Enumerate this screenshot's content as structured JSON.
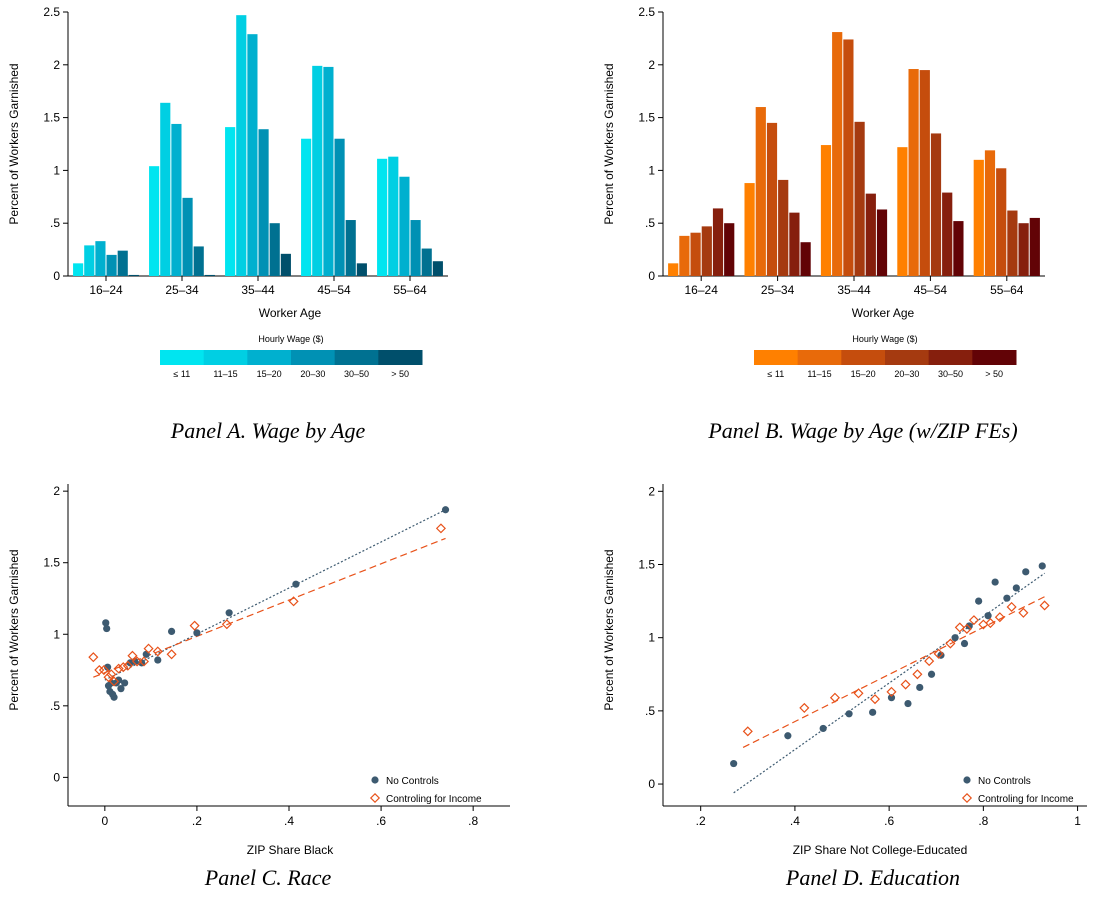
{
  "chart_data": [
    {
      "type": "bar",
      "caption": "Panel A. Wage by Age",
      "xlabel": "Worker Age",
      "ylabel": "Percent of Workers Garnished",
      "ylim": [
        0,
        2.5
      ],
      "yticks": [
        0,
        0.5,
        1,
        1.5,
        2,
        2.5
      ],
      "ytick_labels": [
        "0",
        ".5",
        "1",
        "1.5",
        "2",
        "2.5"
      ],
      "categories": [
        "16–24",
        "25–34",
        "35–44",
        "45–54",
        "55–64"
      ],
      "legend_title": "Hourly Wage ($)",
      "legend_placement": "bottom",
      "series": [
        {
          "name": "≤ 11",
          "color": "#00e5f0",
          "values": [
            0.12,
            1.04,
            1.41,
            1.3,
            1.11
          ]
        },
        {
          "name": "11–15",
          "color": "#00cfe3",
          "values": [
            0.29,
            1.64,
            2.47,
            1.99,
            1.13
          ]
        },
        {
          "name": "15–20",
          "color": "#00b0cf",
          "values": [
            0.33,
            1.44,
            2.29,
            1.98,
            0.94
          ]
        },
        {
          "name": "20–30",
          "color": "#0091b4",
          "values": [
            0.2,
            0.74,
            1.39,
            1.3,
            0.53
          ]
        },
        {
          "name": "30–50",
          "color": "#007191",
          "values": [
            0.24,
            0.28,
            0.5,
            0.53,
            0.26
          ]
        },
        {
          "name": "> 50",
          "color": "#004f6b",
          "values": [
            0.01,
            0.01,
            0.21,
            0.12,
            0.14
          ]
        }
      ]
    },
    {
      "type": "bar",
      "caption": "Panel B. Wage by Age (w/ZIP FEs)",
      "xlabel": "Worker Age",
      "ylabel": "Percent of Workers Garnished",
      "ylim": [
        0,
        2.5
      ],
      "yticks": [
        0,
        0.5,
        1,
        1.5,
        2,
        2.5
      ],
      "ytick_labels": [
        "0",
        ".5",
        "1",
        "1.5",
        "2",
        "2.5"
      ],
      "categories": [
        "16–24",
        "25–34",
        "35–44",
        "45–54",
        "55–64"
      ],
      "legend_title": "Hourly Wage ($)",
      "legend_placement": "bottom",
      "series": [
        {
          "name": "≤ 11",
          "color": "#ff8000",
          "values": [
            0.12,
            0.88,
            1.24,
            1.22,
            1.1
          ]
        },
        {
          "name": "11–15",
          "color": "#e86a0a",
          "values": [
            0.38,
            1.6,
            2.31,
            1.96,
            1.19
          ]
        },
        {
          "name": "15–20",
          "color": "#c54d0d",
          "values": [
            0.41,
            1.45,
            2.24,
            1.95,
            1.02
          ]
        },
        {
          "name": "20–30",
          "color": "#a53a10",
          "values": [
            0.47,
            0.91,
            1.46,
            1.35,
            0.62
          ]
        },
        {
          "name": "30–50",
          "color": "#861f0d",
          "values": [
            0.64,
            0.6,
            0.78,
            0.79,
            0.5
          ]
        },
        {
          "name": "> 50",
          "color": "#620306",
          "values": [
            0.5,
            0.32,
            0.63,
            0.52,
            0.55
          ]
        }
      ]
    },
    {
      "type": "scatter",
      "caption": "Panel C. Race",
      "xlabel": "ZIP Share Black",
      "ylabel": "Percent of Workers Garnished",
      "xlim": [
        -0.08,
        0.88
      ],
      "ylim": [
        -0.2,
        2.05
      ],
      "xticks": [
        0,
        0.2,
        0.4,
        0.6,
        0.8
      ],
      "xtick_labels": [
        "0",
        ".2",
        ".4",
        ".6",
        ".8"
      ],
      "yticks": [
        0,
        0.5,
        1,
        1.5,
        2
      ],
      "ytick_labels": [
        "0",
        ".5",
        "1",
        "1.5",
        "2"
      ],
      "legend_placement": "bottom-right",
      "series": [
        {
          "name": "No Controls",
          "marker": "circle",
          "color": "#3d5a70",
          "points": [
            [
              0.002,
              1.08
            ],
            [
              0.004,
              1.04
            ],
            [
              0.006,
              0.77
            ],
            [
              0.008,
              0.64
            ],
            [
              0.011,
              0.6
            ],
            [
              0.014,
              0.66
            ],
            [
              0.017,
              0.58
            ],
            [
              0.02,
              0.56
            ],
            [
              0.025,
              0.66
            ],
            [
              0.03,
              0.68
            ],
            [
              0.035,
              0.62
            ],
            [
              0.043,
              0.66
            ],
            [
              0.055,
              0.8
            ],
            [
              0.065,
              0.81
            ],
            [
              0.08,
              0.8
            ],
            [
              0.09,
              0.86
            ],
            [
              0.115,
              0.82
            ],
            [
              0.145,
              1.02
            ],
            [
              0.2,
              1.01
            ],
            [
              0.27,
              1.15
            ],
            [
              0.415,
              1.35
            ],
            [
              0.74,
              1.87
            ]
          ],
          "fit": [
            [
              0.0,
              0.68
            ],
            [
              0.74,
              1.87
            ]
          ]
        },
        {
          "name": "Controling for Income",
          "marker": "diamond",
          "color": "#e8521a",
          "points": [
            [
              -0.025,
              0.84
            ],
            [
              -0.012,
              0.75
            ],
            [
              -0.002,
              0.75
            ],
            [
              0.008,
              0.7
            ],
            [
              0.014,
              0.72
            ],
            [
              0.02,
              0.67
            ],
            [
              0.03,
              0.76
            ],
            [
              0.04,
              0.77
            ],
            [
              0.05,
              0.78
            ],
            [
              0.06,
              0.85
            ],
            [
              0.07,
              0.81
            ],
            [
              0.085,
              0.81
            ],
            [
              0.095,
              0.9
            ],
            [
              0.115,
              0.88
            ],
            [
              0.145,
              0.86
            ],
            [
              0.195,
              1.06
            ],
            [
              0.265,
              1.07
            ],
            [
              0.41,
              1.23
            ],
            [
              0.73,
              1.74
            ]
          ],
          "fit": [
            [
              -0.025,
              0.7
            ],
            [
              0.74,
              1.67
            ]
          ]
        }
      ]
    },
    {
      "type": "scatter",
      "caption": "Panel D. Education",
      "xlabel": "ZIP Share Not College-Educated",
      "ylabel": "Percent of Workers Garnished",
      "xlim": [
        0.12,
        1.02
      ],
      "ylim": [
        -0.15,
        2.05
      ],
      "xticks": [
        0.2,
        0.4,
        0.6,
        0.8,
        1
      ],
      "xtick_labels": [
        ".2",
        ".4",
        ".6",
        ".8",
        "1"
      ],
      "yticks": [
        0,
        0.5,
        1,
        1.5,
        2
      ],
      "ytick_labels": [
        "0",
        ".5",
        "1",
        "1.5",
        "2"
      ],
      "legend_placement": "bottom-right",
      "series": [
        {
          "name": "No Controls",
          "marker": "circle",
          "color": "#3d5a70",
          "points": [
            [
              0.27,
              0.14
            ],
            [
              0.385,
              0.33
            ],
            [
              0.46,
              0.38
            ],
            [
              0.515,
              0.48
            ],
            [
              0.565,
              0.49
            ],
            [
              0.605,
              0.59
            ],
            [
              0.64,
              0.55
            ],
            [
              0.665,
              0.66
            ],
            [
              0.69,
              0.75
            ],
            [
              0.71,
              0.88
            ],
            [
              0.74,
              1.0
            ],
            [
              0.76,
              0.96
            ],
            [
              0.77,
              1.08
            ],
            [
              0.79,
              1.25
            ],
            [
              0.81,
              1.15
            ],
            [
              0.825,
              1.38
            ],
            [
              0.85,
              1.27
            ],
            [
              0.87,
              1.34
            ],
            [
              0.89,
              1.45
            ],
            [
              0.925,
              1.49
            ]
          ],
          "fit": [
            [
              0.27,
              -0.06
            ],
            [
              0.93,
              1.44
            ]
          ]
        },
        {
          "name": "Controling for Income",
          "marker": "diamond",
          "color": "#e8521a",
          "points": [
            [
              0.3,
              0.36
            ],
            [
              0.42,
              0.52
            ],
            [
              0.485,
              0.59
            ],
            [
              0.535,
              0.62
            ],
            [
              0.57,
              0.58
            ],
            [
              0.605,
              0.63
            ],
            [
              0.635,
              0.68
            ],
            [
              0.66,
              0.75
            ],
            [
              0.685,
              0.84
            ],
            [
              0.705,
              0.89
            ],
            [
              0.73,
              0.96
            ],
            [
              0.75,
              1.07
            ],
            [
              0.765,
              1.06
            ],
            [
              0.78,
              1.12
            ],
            [
              0.8,
              1.09
            ],
            [
              0.815,
              1.1
            ],
            [
              0.835,
              1.14
            ],
            [
              0.86,
              1.21
            ],
            [
              0.885,
              1.17
            ],
            [
              0.93,
              1.22
            ]
          ],
          "fit": [
            [
              0.29,
              0.25
            ],
            [
              0.93,
              1.28
            ]
          ]
        }
      ]
    }
  ]
}
